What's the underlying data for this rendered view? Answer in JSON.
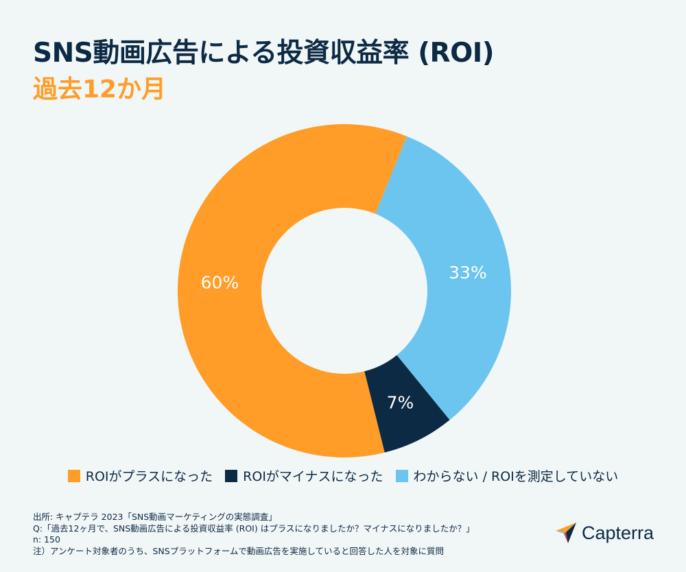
{
  "header": {
    "title": "SNS動画広告による投資収益率 (ROI)",
    "subtitle": "過去12か月"
  },
  "colors": {
    "orange": "#ff9d28",
    "navy": "#0d2a44",
    "lightblue": "#6cc5ee",
    "background": "#f1f6f7"
  },
  "chart_data": {
    "type": "pie",
    "variant": "donut",
    "title": "SNS動画広告による投資収益率 (ROI)",
    "subtitle": "過去12か月",
    "categories": [
      "ROIがプラスになった",
      "ROIがマイナスになった",
      "わからない / ROIを測定していない"
    ],
    "values": [
      60,
      7,
      33
    ],
    "unit": "%",
    "data_labels": [
      "60%",
      "7%",
      "33%"
    ],
    "colors": [
      "#ff9d28",
      "#0d2a44",
      "#6cc5ee"
    ],
    "legend_position": "bottom"
  },
  "legend": {
    "items": [
      {
        "label": "ROIがプラスになった",
        "color": "#ff9d28"
      },
      {
        "label": "ROIがマイナスになった",
        "color": "#0d2a44"
      },
      {
        "label": "わからない / ROIを測定していない",
        "color": "#6cc5ee"
      }
    ]
  },
  "footnotes": {
    "source": "出所: キャプテラ 2023「SNS動画マーケティングの実態調査」",
    "question": "Q:「過去12ヶ月で、SNS動画広告による投資収益率 (ROI) はプラスになりましたか？マイナスになりましたか？」",
    "n": "n: 150",
    "note": "注）アンケート対象者のうち、SNSプラットフォームで動画広告を実施していると回答した人を対象に質問"
  },
  "brand": {
    "name": "Capterra",
    "icon": "capterra-arrow-logo"
  }
}
